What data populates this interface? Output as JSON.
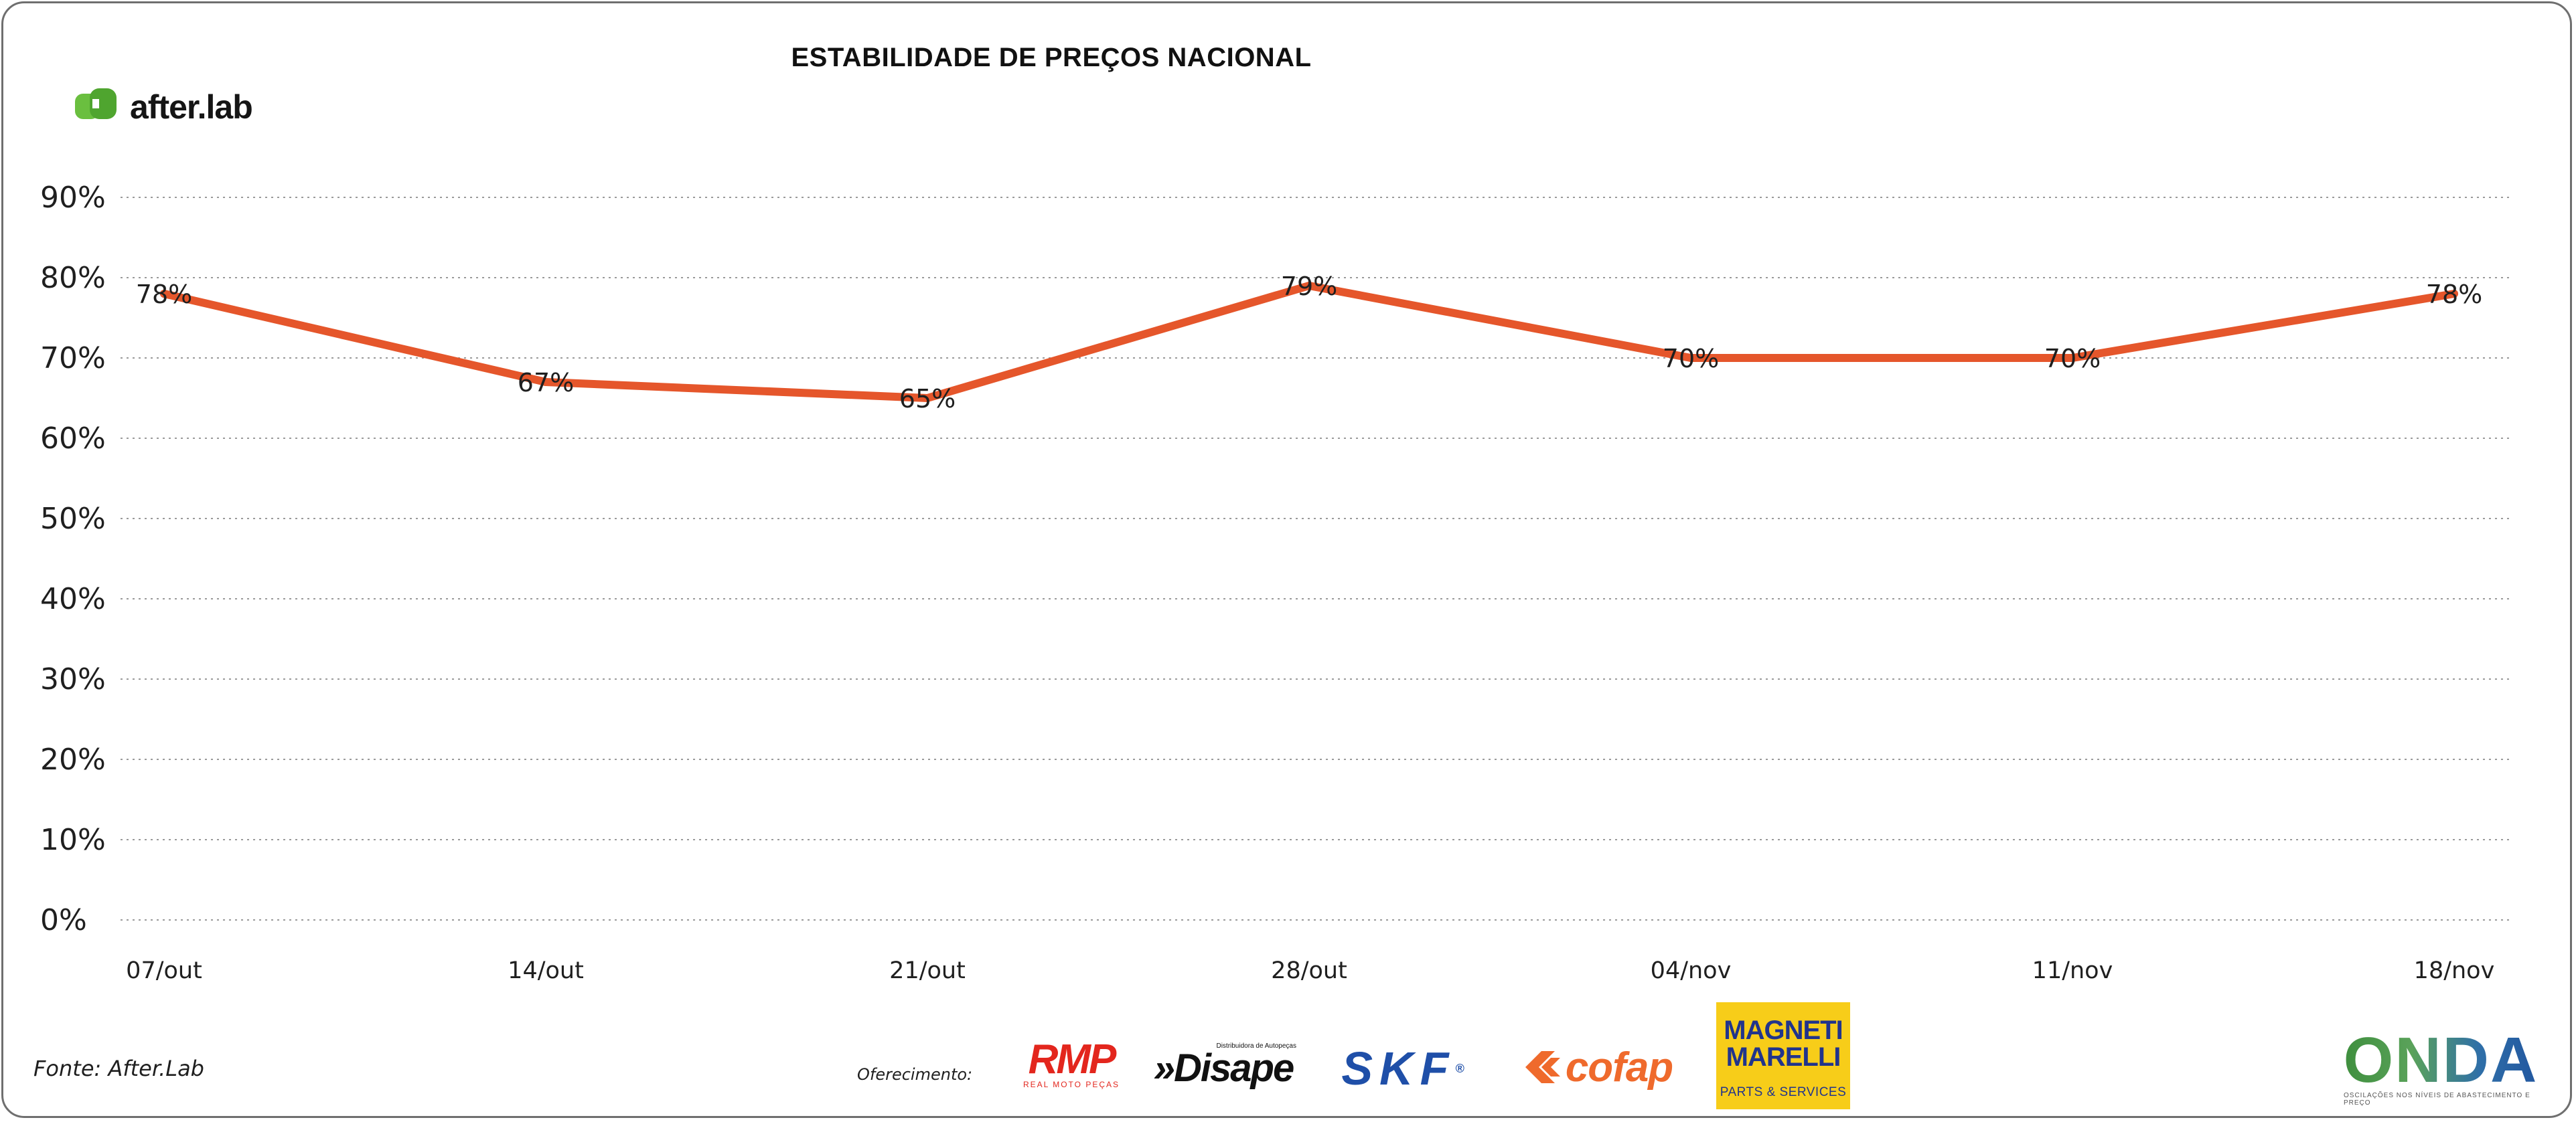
{
  "brand": {
    "name": "after.lab",
    "logo_icon": "afterlab-logo-icon",
    "color": "#6abf3f"
  },
  "source": "Fonte: After.Lab",
  "offer_label": "Oferecimento:",
  "sponsors": {
    "rmp": {
      "name": "RMP",
      "tagline": "REAL MOTO PEÇAS"
    },
    "disape": {
      "name": "»Disape",
      "tagline": "Distribuidora de Autopeças"
    },
    "skf": {
      "name": "SKF",
      "mark": "®"
    },
    "cofap": {
      "name": "cofap"
    },
    "magneti_marelli": {
      "line1": "MAGNETI",
      "line2": "MARELLI",
      "line3": "PARTS & SERVICES"
    },
    "onda": {
      "name": "ONDA",
      "tagline": "OSCILAÇÕES NOS NÍVEIS DE ABASTECIMENTO E PREÇO"
    }
  },
  "colors": {
    "line": "#e5562b",
    "grid": "#9a9a9a",
    "text": "#1f1f1f"
  },
  "chart_data": {
    "type": "line",
    "title": "ESTABILIDADE DE PREÇOS NACIONAL",
    "xlabel": "",
    "ylabel": "",
    "categories": [
      "07/out",
      "14/out",
      "21/out",
      "28/out",
      "04/nov",
      "11/nov",
      "18/nov"
    ],
    "series": [
      {
        "values": [
          78,
          67,
          65,
          79,
          70,
          70,
          78
        ],
        "labels": [
          "78%",
          "67%",
          "65%",
          "79%",
          "70%",
          "70%",
          "78%"
        ]
      }
    ],
    "yticks": [
      "0%",
      "10%",
      "20%",
      "30%",
      "40%",
      "50%",
      "60%",
      "70%",
      "80%",
      "90%"
    ],
    "ylim": [
      0,
      90
    ],
    "grid": "horizontal dotted",
    "legend": "none"
  }
}
